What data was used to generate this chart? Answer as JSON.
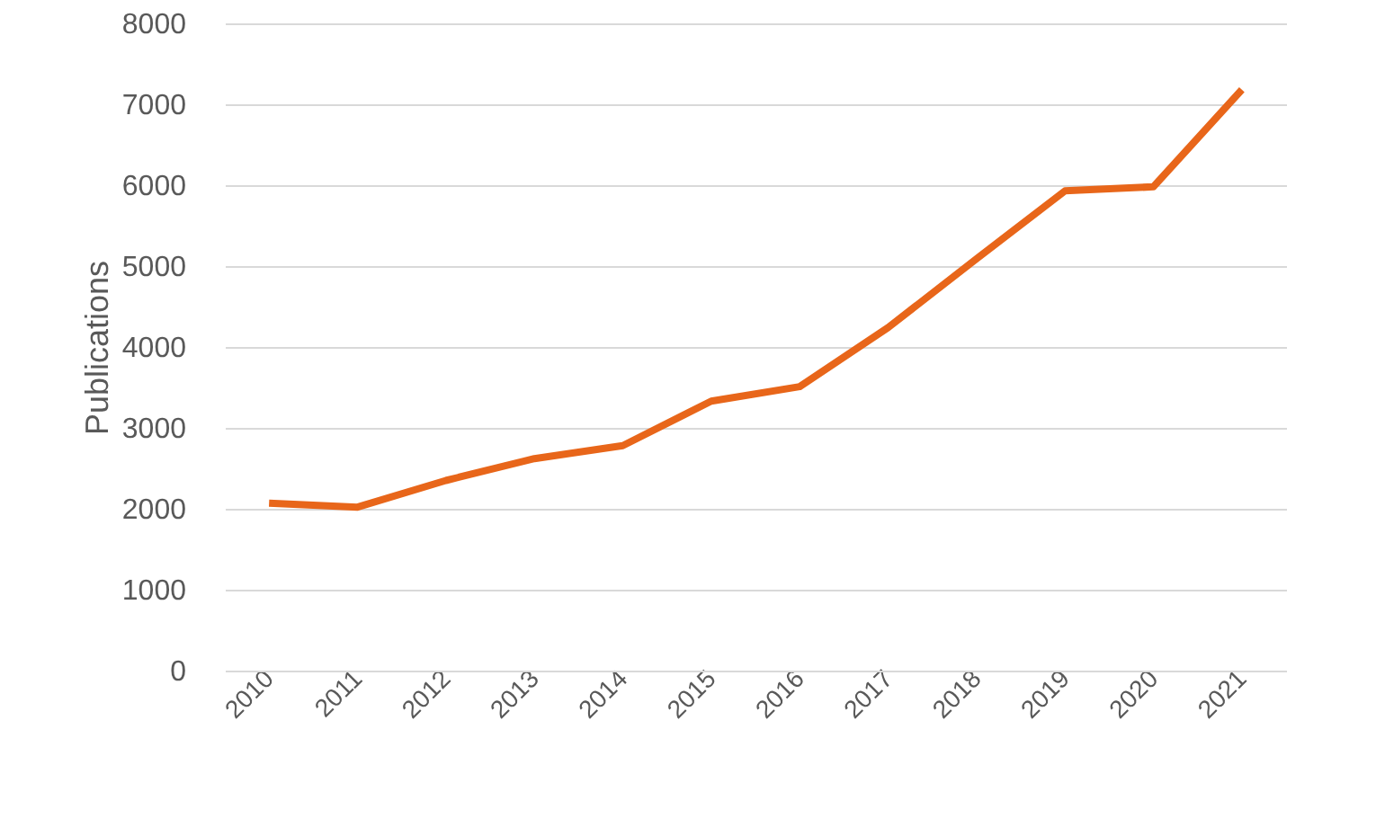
{
  "chart_data": {
    "type": "line",
    "ylabel": "Publications",
    "categories": [
      "2010",
      "2011",
      "2012",
      "2013",
      "2014",
      "2015",
      "2016",
      "2017",
      "2018",
      "2019",
      "2020",
      "2021"
    ],
    "series": [
      {
        "color": "#e8661a",
        "values": [
          2070,
          2020,
          2350,
          2620,
          2780,
          3330,
          3510,
          4240,
          5090,
          5930,
          5980,
          7180
        ]
      }
    ],
    "ylim": [
      0,
      8000
    ],
    "yticks": [
      0,
      1000,
      2000,
      3000,
      4000,
      5000,
      6000,
      7000,
      8000
    ],
    "grid": "y",
    "marker": "none",
    "line_style": "solid"
  }
}
